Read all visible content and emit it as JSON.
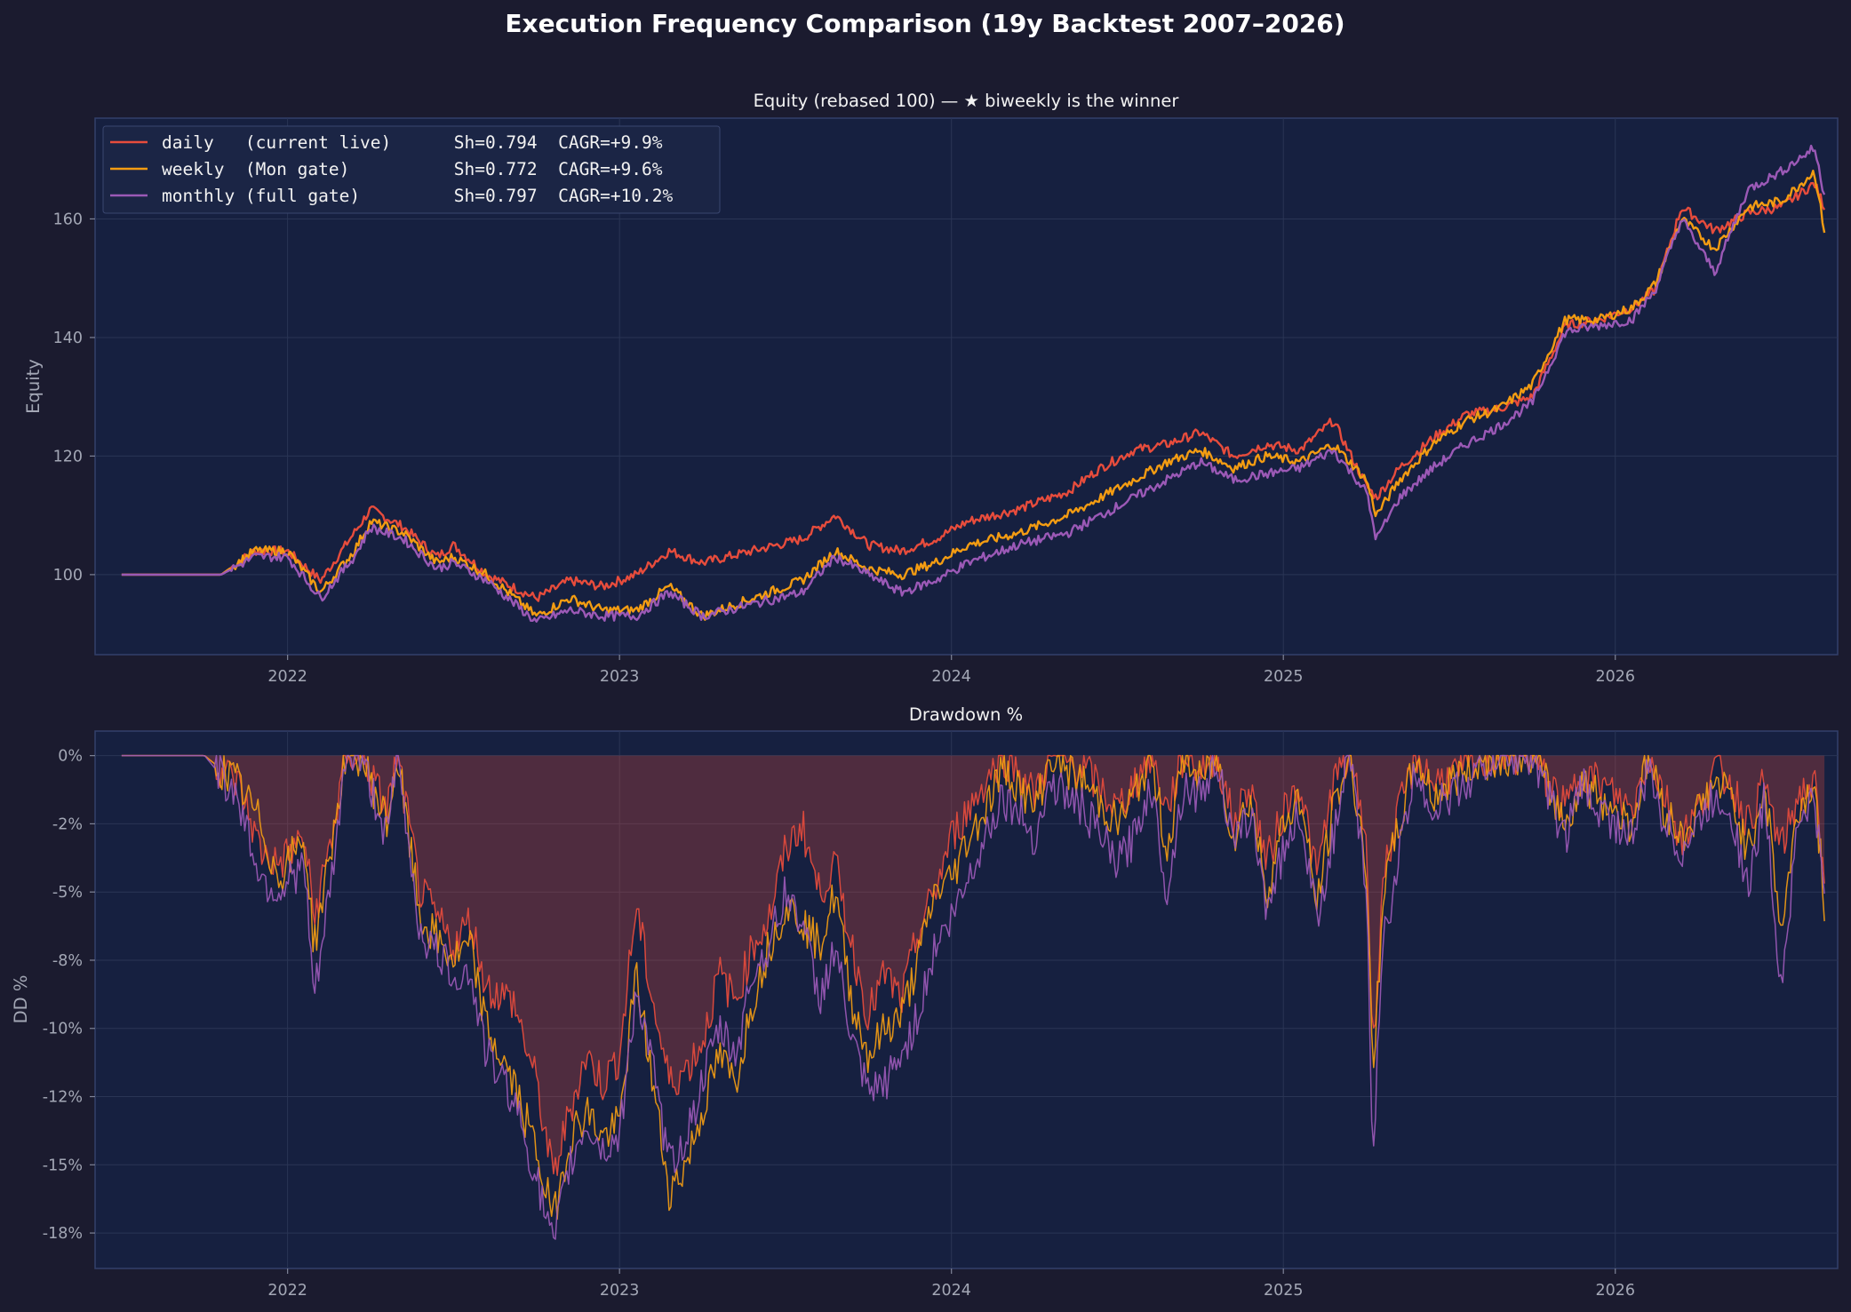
{
  "chart_data": [
    {
      "type": "line",
      "suptitle": "Execution Frequency Comparison (19y Backtest 2007–2026)",
      "title": "Equity (rebased 100) — ★ biweekly is the winner",
      "ylabel": "Equity",
      "xlabel": "",
      "x_ticks": [
        "2022",
        "2023",
        "2024",
        "2025",
        "2026"
      ],
      "y_ticks": [
        "100",
        "120",
        "140",
        "160"
      ],
      "xlim": [
        2021.42,
        2026.67
      ],
      "ylim": [
        86.5,
        177.0
      ],
      "grid": true,
      "legend_position": "top-left",
      "x": [
        2021.5,
        2021.8,
        2021.9,
        2022.0,
        2022.1,
        2022.2,
        2022.25,
        2022.35,
        2022.45,
        2022.5,
        2022.6,
        2022.75,
        2022.85,
        2022.95,
        2023.05,
        2023.15,
        2023.25,
        2023.4,
        2023.55,
        2023.65,
        2023.75,
        2023.85,
        2023.95,
        2024.05,
        2024.2,
        2024.35,
        2024.45,
        2024.55,
        2024.65,
        2024.75,
        2024.85,
        2024.95,
        2025.05,
        2025.15,
        2025.25,
        2025.28,
        2025.35,
        2025.45,
        2025.55,
        2025.65,
        2025.75,
        2025.85,
        2025.95,
        2026.05,
        2026.12,
        2026.2,
        2026.3,
        2026.4,
        2026.5,
        2026.6,
        2026.63
      ],
      "series": [
        {
          "name": "daily   (current live)      Sh=0.794  CAGR=+9.9%",
          "color": "#e74c3c",
          "values": [
            100,
            100,
            104,
            104,
            99,
            107,
            111,
            108,
            103,
            105,
            100,
            96,
            99,
            98,
            100,
            104,
            102,
            104,
            106,
            110,
            105,
            104,
            106,
            109,
            111,
            114,
            118,
            121,
            122,
            124,
            120,
            122,
            121,
            126,
            115,
            113,
            118,
            123,
            127,
            128,
            130,
            142,
            143,
            145,
            148,
            162,
            158,
            161,
            162,
            166,
            162
          ]
        },
        {
          "name": "weekly  (Mon gate)          Sh=0.772  CAGR=+9.6%",
          "color": "#f39c12",
          "values": [
            100,
            100,
            104,
            104,
            97,
            104,
            109,
            107,
            102,
            103,
            100,
            93,
            96,
            94,
            94,
            98,
            93,
            96,
            99,
            104,
            101,
            100,
            102,
            105,
            107,
            110,
            113,
            116,
            119,
            121,
            118,
            120,
            119,
            122,
            116,
            110,
            116,
            122,
            126,
            128,
            132,
            143,
            143,
            145,
            149,
            160,
            155,
            162,
            163,
            168,
            158
          ]
        },
        {
          "name": "monthly (full gate)         Sh=0.797  CAGR=+10.2%",
          "color": "#9b59b6",
          "values": [
            100,
            100,
            103,
            103,
            96,
            103,
            108,
            106,
            101,
            102,
            99,
            92,
            94,
            93,
            93,
            97,
            93,
            95,
            97,
            103,
            100,
            97,
            99,
            102,
            105,
            107,
            110,
            113,
            116,
            119,
            116,
            117,
            118,
            121,
            114,
            106,
            113,
            118,
            122,
            125,
            129,
            141,
            142,
            143,
            148,
            160,
            151,
            165,
            168,
            172,
            164
          ]
        }
      ]
    },
    {
      "type": "area",
      "title": "Drawdown %",
      "ylabel": "DD %",
      "xlabel": "",
      "x_ticks": [
        "2022",
        "2023",
        "2024",
        "2025",
        "2026"
      ],
      "y_ticks": [
        "0%",
        "-2%",
        "-5%",
        "-8%",
        "-10%",
        "-12%",
        "-15%",
        "-18%"
      ],
      "y_tick_values": [
        0,
        -2.5,
        -5,
        -7.5,
        -10,
        -12.5,
        -15,
        -17.5
      ],
      "xlim": [
        2021.42,
        2026.67
      ],
      "ylim": [
        -18.8,
        0.9
      ],
      "grid": true,
      "fill_color": "#e74c3c",
      "x": [
        2021.5,
        2021.75,
        2021.85,
        2021.92,
        2021.97,
        2022.05,
        2022.08,
        2022.15,
        2022.17,
        2022.22,
        2022.3,
        2022.33,
        2022.4,
        2022.5,
        2022.55,
        2022.6,
        2022.68,
        2022.75,
        2022.8,
        2022.85,
        2022.9,
        2022.95,
        2023.0,
        2023.05,
        2023.1,
        2023.15,
        2023.2,
        2023.25,
        2023.3,
        2023.35,
        2023.4,
        2023.45,
        2023.5,
        2023.55,
        2023.6,
        2023.65,
        2023.7,
        2023.75,
        2023.8,
        2023.85,
        2023.9,
        2023.95,
        2024.0,
        2024.05,
        2024.1,
        2024.15,
        2024.2,
        2024.25,
        2024.3,
        2024.4,
        2024.5,
        2024.55,
        2024.6,
        2024.65,
        2024.7,
        2024.75,
        2024.8,
        2024.85,
        2024.9,
        2024.95,
        2025.0,
        2025.05,
        2025.1,
        2025.15,
        2025.2,
        2025.25,
        2025.27,
        2025.3,
        2025.35,
        2025.4,
        2025.45,
        2025.55,
        2025.65,
        2025.75,
        2025.85,
        2025.9,
        2025.95,
        2026.05,
        2026.1,
        2026.15,
        2026.2,
        2026.25,
        2026.3,
        2026.35,
        2026.4,
        2026.45,
        2026.5,
        2026.55,
        2026.6,
        2026.63
      ],
      "series": [
        {
          "name": "daily",
          "color": "#e74c3c",
          "values": [
            0,
            0,
            -1.0,
            -3.5,
            -4.0,
            -3.0,
            -6.0,
            -2.0,
            0,
            0,
            -2.0,
            0,
            -5.0,
            -7.0,
            -6.0,
            -8.5,
            -9.0,
            -12.0,
            -15.5,
            -13.0,
            -11.0,
            -12.0,
            -11.0,
            -5.5,
            -9.0,
            -12.0,
            -11.5,
            -10.5,
            -8.0,
            -9.0,
            -7.0,
            -6.0,
            -3.5,
            -2.5,
            -5.0,
            -4.0,
            -7.0,
            -9.5,
            -8.0,
            -9.0,
            -6.5,
            -5.0,
            -3.0,
            -2.0,
            -1.0,
            0,
            -0.5,
            -1.5,
            0,
            -0.5,
            -2.0,
            -1.0,
            0,
            -2.0,
            0,
            -0.5,
            0,
            -2.5,
            -1.0,
            -4.0,
            -2.0,
            -1.0,
            -4.5,
            -1.0,
            0,
            -3.0,
            -11.0,
            -4.5,
            -2.0,
            0,
            -1.0,
            -0.5,
            0,
            0,
            -2.0,
            -0.5,
            -1.0,
            -2.0,
            0,
            -1.5,
            -3.0,
            -2.0,
            -0.5,
            -1.0,
            -2.5,
            -1.0,
            -3.5,
            -1.5,
            -1.0,
            -5.0
          ]
        },
        {
          "name": "weekly",
          "color": "#f39c12",
          "values": [
            0,
            0,
            -1.0,
            -2.5,
            -4.5,
            -3.0,
            -7.0,
            -2.0,
            0,
            0,
            -2.5,
            0,
            -6.0,
            -7.5,
            -7.0,
            -10.0,
            -12.0,
            -14.5,
            -17.0,
            -14.0,
            -13.0,
            -14.0,
            -13.5,
            -8.0,
            -12.0,
            -16.0,
            -15.0,
            -13.0,
            -11.0,
            -12.0,
            -9.0,
            -7.0,
            -5.5,
            -6.0,
            -7.0,
            -5.0,
            -9.0,
            -11.0,
            -10.0,
            -9.5,
            -7.5,
            -5.0,
            -4.5,
            -3.0,
            -2.0,
            -0.5,
            -1.0,
            -2.0,
            0,
            -1.0,
            -2.5,
            -1.5,
            0,
            -3.5,
            0,
            -1.0,
            0,
            -3.0,
            -1.5,
            -5.0,
            -2.5,
            -1.5,
            -5.5,
            -2.0,
            0,
            -4.0,
            -12.0,
            -5.0,
            -2.5,
            0,
            -1.5,
            -0.5,
            0,
            0,
            -2.5,
            -1.0,
            -1.5,
            -2.5,
            0,
            -2.0,
            -3.0,
            -2.0,
            -1.0,
            -1.5,
            -3.5,
            -1.0,
            -6.5,
            -2.0,
            -1.0,
            -5.5
          ]
        },
        {
          "name": "monthly",
          "color": "#9b59b6",
          "values": [
            0,
            0,
            -1.5,
            -4.5,
            -5.0,
            -4.0,
            -9.0,
            -3.0,
            0,
            0,
            -3.0,
            0,
            -6.5,
            -8.0,
            -8.0,
            -11.0,
            -12.5,
            -15.5,
            -18.0,
            -15.0,
            -13.5,
            -14.5,
            -14.0,
            -8.5,
            -11.5,
            -15.0,
            -14.0,
            -12.0,
            -10.0,
            -11.0,
            -8.0,
            -7.0,
            -5.0,
            -6.0,
            -9.0,
            -7.0,
            -10.5,
            -12.5,
            -12.0,
            -11.0,
            -9.5,
            -7.0,
            -6.0,
            -4.5,
            -3.0,
            -1.5,
            -2.0,
            -3.0,
            -1.0,
            -2.0,
            -4.0,
            -3.0,
            -1.0,
            -5.0,
            -1.0,
            -1.5,
            0,
            -3.5,
            -2.0,
            -5.5,
            -3.5,
            -2.0,
            -6.0,
            -3.0,
            0,
            -5.0,
            -14.5,
            -7.0,
            -3.5,
            -0.5,
            -2.0,
            -1.0,
            0,
            0,
            -3.0,
            -1.0,
            -2.0,
            -3.0,
            -0.5,
            -2.5,
            -3.5,
            -2.5,
            -1.5,
            -2.0,
            -5.0,
            -1.5,
            -8.5,
            -2.5,
            -1.5,
            -5.5
          ]
        }
      ]
    }
  ]
}
